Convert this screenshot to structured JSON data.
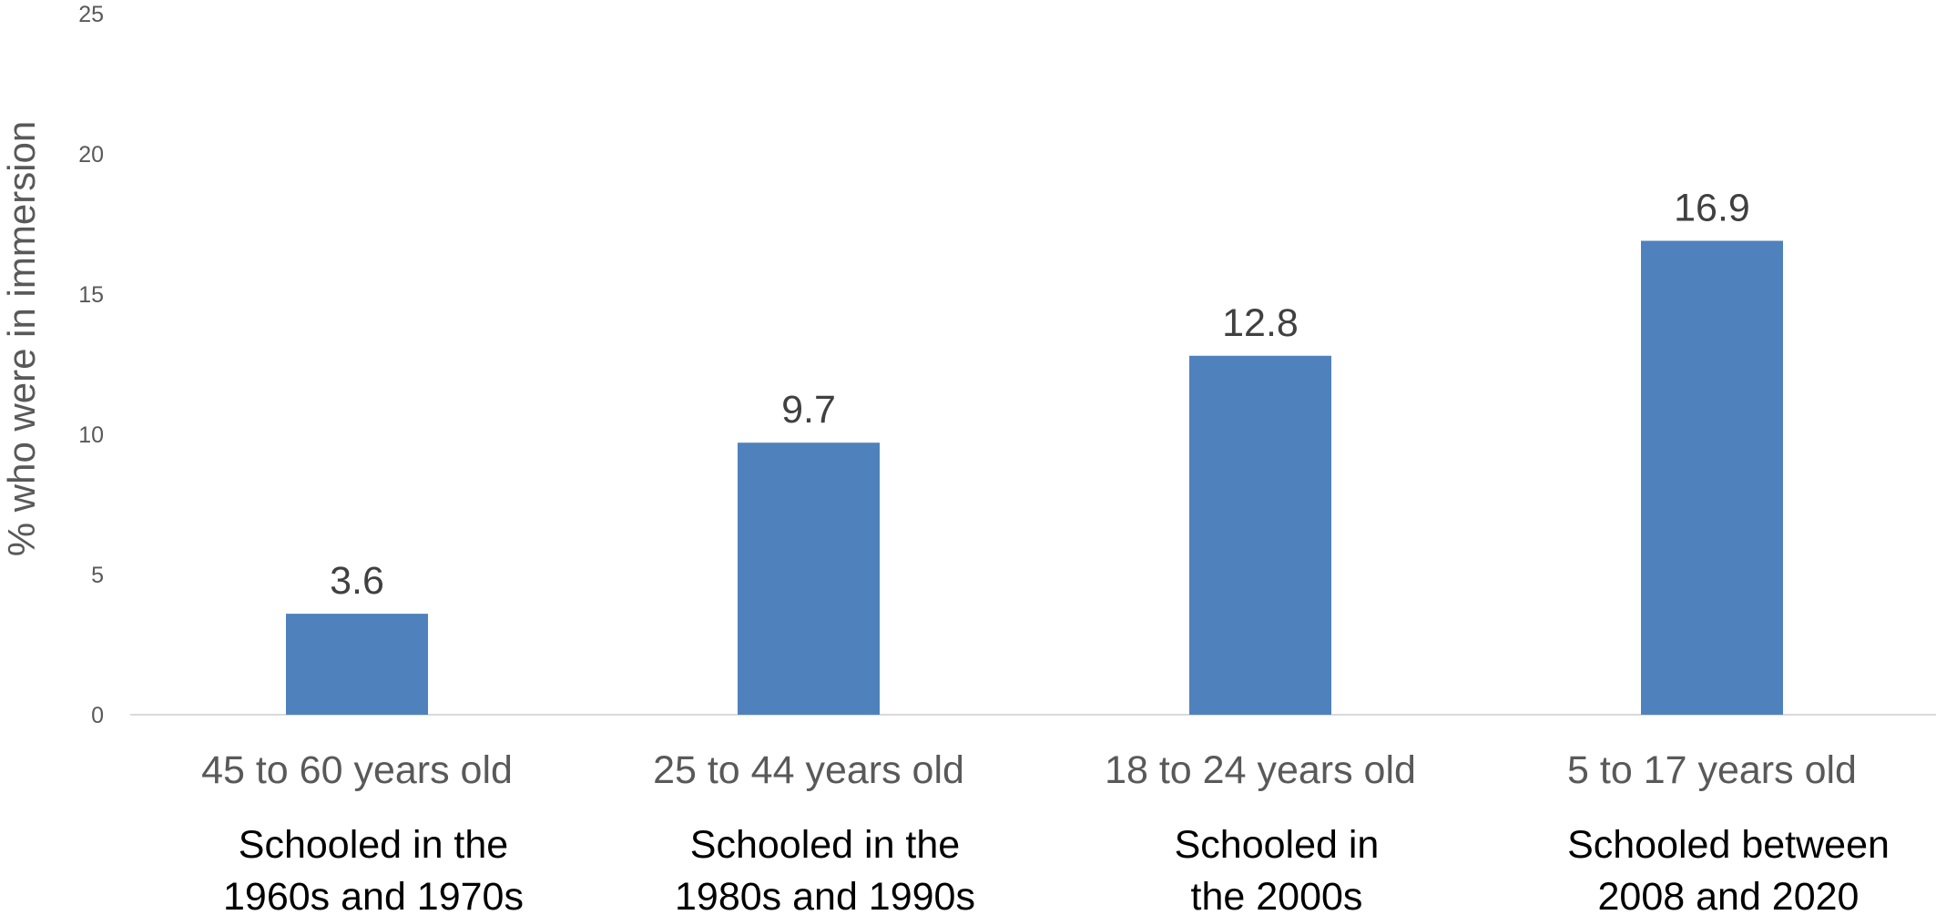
{
  "chart_data": {
    "type": "bar",
    "title": "",
    "xlabel": "",
    "ylabel": "% who were in immersion",
    "ylim": [
      0,
      25
    ],
    "yticks": [
      "0",
      "5",
      "10",
      "15",
      "20",
      "25"
    ],
    "grid": false,
    "legend": "none",
    "categories": [
      "45 to 60 years old",
      "25 to 44 years old",
      "18 to 24 years old",
      "5 to 17 years old"
    ],
    "values": [
      3.6,
      9.7,
      12.8,
      16.9
    ],
    "data_labels": [
      "3.6",
      "9.7",
      "12.8",
      "16.9"
    ],
    "annotations": [
      [
        "Schooled in the",
        "1960s and 1970s"
      ],
      [
        "Schooled in the",
        "1980s and 1990s"
      ],
      [
        "Schooled in",
        "the 2000s"
      ],
      [
        "Schooled between",
        "2008 and 2020"
      ]
    ],
    "colors": {
      "bar": "#4f81bd",
      "baseline": "#d9d9d9"
    }
  }
}
